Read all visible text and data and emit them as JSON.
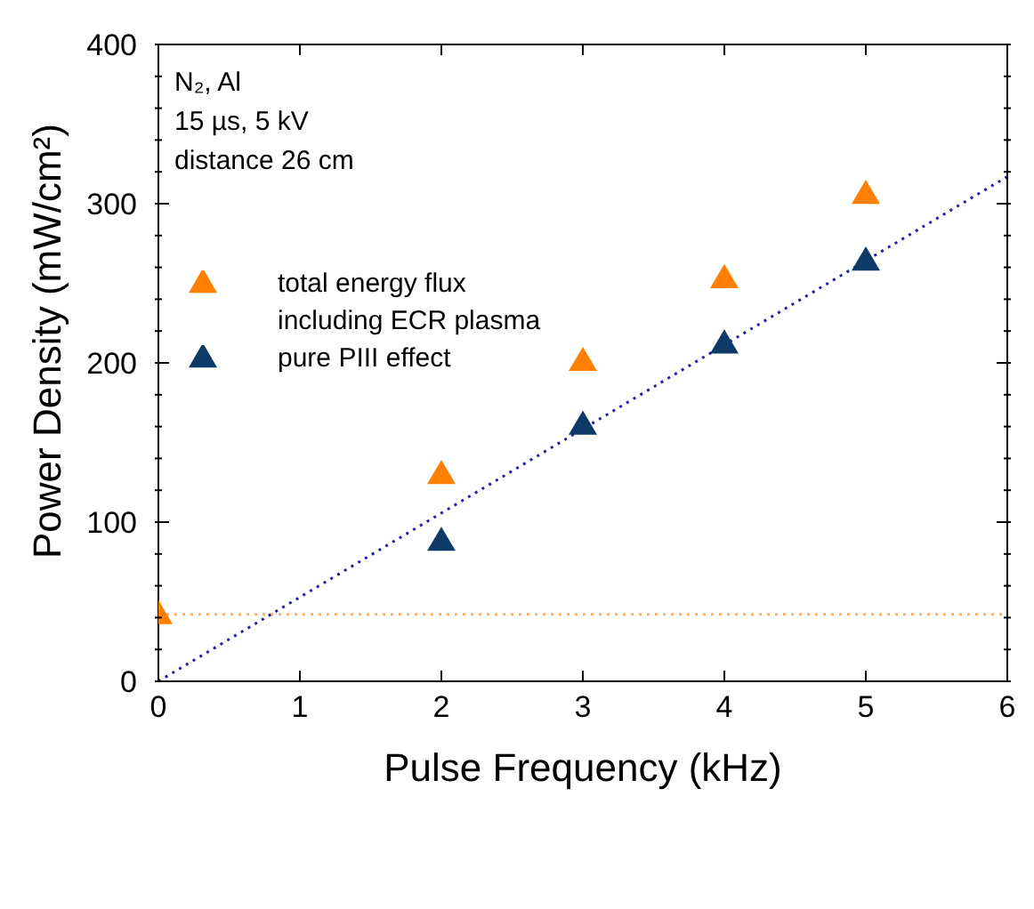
{
  "chart_data": {
    "type": "scatter",
    "xlabel": "Pulse Frequency (kHz)",
    "ylabel": "Power Density (mW/cm²)",
    "annotations": [
      "N₂, Al",
      "15 µs, 5 kV",
      "distance 26 cm"
    ],
    "xlim": [
      0,
      6
    ],
    "xticks": [
      0,
      1,
      2,
      3,
      4,
      5,
      6
    ],
    "ylim": [
      0,
      400
    ],
    "yticks": [
      0,
      {
        "value": 20,
        "label": null
      },
      {
        "value": 40,
        "label": null
      },
      {
        "value": 60,
        "label": null
      },
      {
        "value": 80,
        "label": null
      },
      100,
      {
        "value": 120,
        "label": null
      },
      {
        "value": 140,
        "label": null
      },
      {
        "value": 160,
        "label": null
      },
      {
        "value": 180,
        "label": null
      },
      200,
      {
        "value": 220,
        "label": null
      },
      {
        "value": 240,
        "label": null
      },
      {
        "value": 260,
        "label": null
      },
      {
        "value": 280,
        "label": null
      },
      300,
      {
        "value": 320,
        "label": null
      },
      {
        "value": 340,
        "label": null
      },
      {
        "value": 360,
        "label": null
      },
      {
        "value": 380,
        "label": null
      },
      400
    ],
    "grid": false,
    "legend": "top left",
    "marker": "triangle",
    "series": [
      {
        "name": "total energy flux including ECR plasma",
        "color": "#ff8000",
        "x": [
          0,
          2,
          3,
          4,
          5
        ],
        "values": [
          42,
          130,
          201,
          253,
          306
        ]
      },
      {
        "name": "pure PIII effect",
        "color": "#0d3a66",
        "x": [
          2,
          3,
          4,
          5
        ],
        "values": [
          88,
          161,
          212,
          264
        ]
      },
      {
        "type": "line",
        "color": "#2020a0",
        "marker": "none",
        "line_style": "dotted",
        "x": [
          0,
          6
        ],
        "values": [
          0,
          317
        ]
      }
    ],
    "ref_lines": [
      {
        "axis": "y",
        "value": 42,
        "color": "#ffb060",
        "line_style": "dotted"
      }
    ]
  }
}
